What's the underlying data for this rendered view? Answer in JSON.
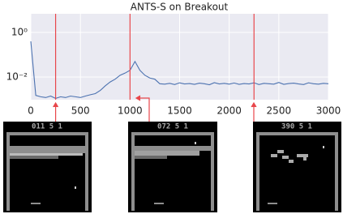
{
  "chart_data": {
    "type": "line",
    "title": "ANTS-S on Breakout",
    "x": [
      0,
      50,
      100,
      150,
      200,
      250,
      300,
      350,
      400,
      450,
      500,
      550,
      600,
      650,
      700,
      750,
      800,
      850,
      900,
      950,
      1000,
      1050,
      1100,
      1150,
      1200,
      1250,
      1300,
      1350,
      1400,
      1450,
      1500,
      1550,
      1600,
      1650,
      1700,
      1750,
      1800,
      1850,
      1900,
      1950,
      2000,
      2050,
      2100,
      2150,
      2200,
      2250,
      2300,
      2350,
      2400,
      2450,
      2500,
      2550,
      2600,
      2650,
      2700,
      2750,
      2800,
      2850,
      2900,
      2950,
      3000
    ],
    "values": [
      0.4,
      0.0015,
      0.0013,
      0.0012,
      0.0014,
      0.0011,
      0.0013,
      0.0012,
      0.0014,
      0.0013,
      0.0012,
      0.0014,
      0.0016,
      0.0018,
      0.0025,
      0.004,
      0.006,
      0.008,
      0.012,
      0.015,
      0.02,
      0.05,
      0.02,
      0.012,
      0.009,
      0.008,
      0.005,
      0.0048,
      0.0052,
      0.0046,
      0.0055,
      0.0049,
      0.0051,
      0.0047,
      0.0053,
      0.005,
      0.0045,
      0.0056,
      0.0049,
      0.0052,
      0.0048,
      0.0054,
      0.0047,
      0.0051,
      0.0049,
      0.0055,
      0.0046,
      0.0052,
      0.005,
      0.0048,
      0.0057,
      0.0047,
      0.0051,
      0.0053,
      0.0049,
      0.0046,
      0.0055,
      0.005,
      0.0048,
      0.0052,
      0.005
    ],
    "color": "#4c72b0",
    "xlim": [
      0,
      3000
    ],
    "xticks": [
      0,
      500,
      1000,
      1500,
      2000,
      2500,
      3000
    ],
    "ylim": [
      0.00096,
      6.9
    ],
    "yscale": "log",
    "yticks": [
      {
        "value": 1,
        "label": "10⁰"
      },
      {
        "value": 0.01,
        "label": "10⁻²"
      }
    ],
    "grid": true,
    "markers": [
      250,
      1000,
      2250
    ],
    "marker_color": "#e8474b"
  },
  "screenshots": [
    {
      "score": "011  5  1"
    },
    {
      "score": "072  5  1"
    },
    {
      "score": "390  5  1"
    }
  ]
}
